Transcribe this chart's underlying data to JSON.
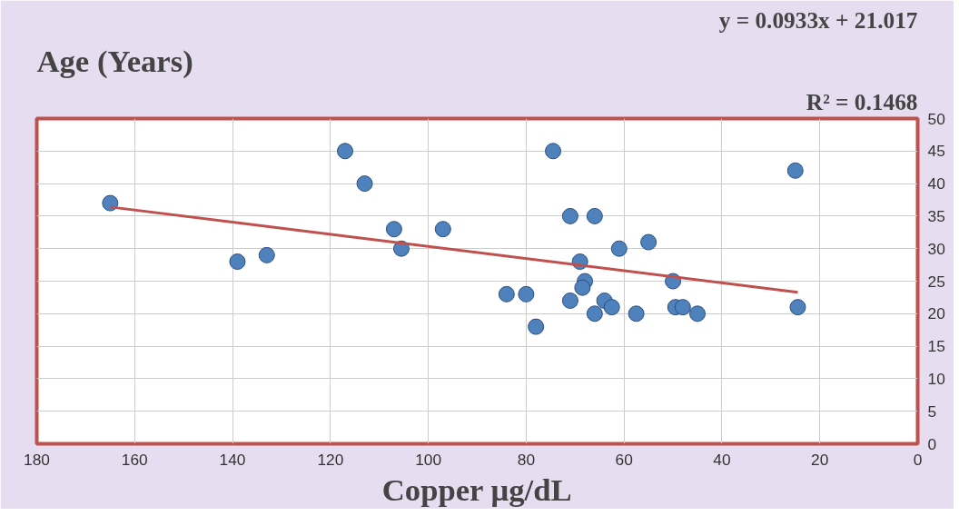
{
  "chart_data": {
    "type": "scatter",
    "title": "Age (Years)",
    "xlabel": "Copper μg/dL",
    "annotations": [
      "y = 0.0933x + 21.017",
      "R² = 0.1468"
    ],
    "xlim": [
      180,
      0
    ],
    "xticks": [
      180,
      160,
      140,
      120,
      100,
      80,
      60,
      40,
      20,
      0
    ],
    "ylim": [
      0,
      50
    ],
    "yticks": [
      0,
      5,
      10,
      15,
      20,
      25,
      30,
      35,
      40,
      45,
      50
    ],
    "grid": true,
    "series": [
      {
        "marker": "circle",
        "color": "#4f81bd",
        "x": [
          165,
          139,
          133,
          117,
          113,
          107,
          105.5,
          97,
          84,
          80,
          78,
          74.5,
          71,
          71,
          69,
          68,
          68.5,
          66,
          66,
          64,
          62.5,
          61,
          57.5,
          55,
          50,
          49.5,
          48,
          45,
          25,
          24.5
        ],
        "values": [
          37,
          28,
          29,
          45,
          40,
          33,
          30,
          33,
          23,
          23,
          18,
          45,
          35,
          22,
          28,
          25,
          24,
          35,
          20,
          22,
          21,
          30,
          20,
          31,
          25,
          21,
          21,
          20,
          42,
          21
        ]
      },
      {
        "type": "line",
        "marker": "none",
        "color": "#c0504d",
        "x": [
          165,
          24.5
        ],
        "values": [
          36.4,
          23.3
        ]
      }
    ]
  }
}
